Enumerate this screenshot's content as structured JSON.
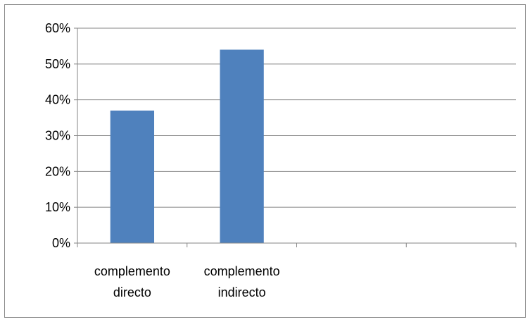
{
  "chart_data": {
    "type": "bar",
    "categories": [
      [
        "complemento",
        "directo"
      ],
      [
        "complemento",
        "indirecto"
      ],
      [],
      []
    ],
    "values": [
      37,
      54,
      null,
      null
    ],
    "ylim": [
      0,
      60
    ],
    "yticks": [
      "0%",
      "10%",
      "20%",
      "30%",
      "40%",
      "50%",
      "60%"
    ],
    "grid": true,
    "legend": "none",
    "bar_color": "#4f81bd",
    "grid_color": "#868686"
  }
}
